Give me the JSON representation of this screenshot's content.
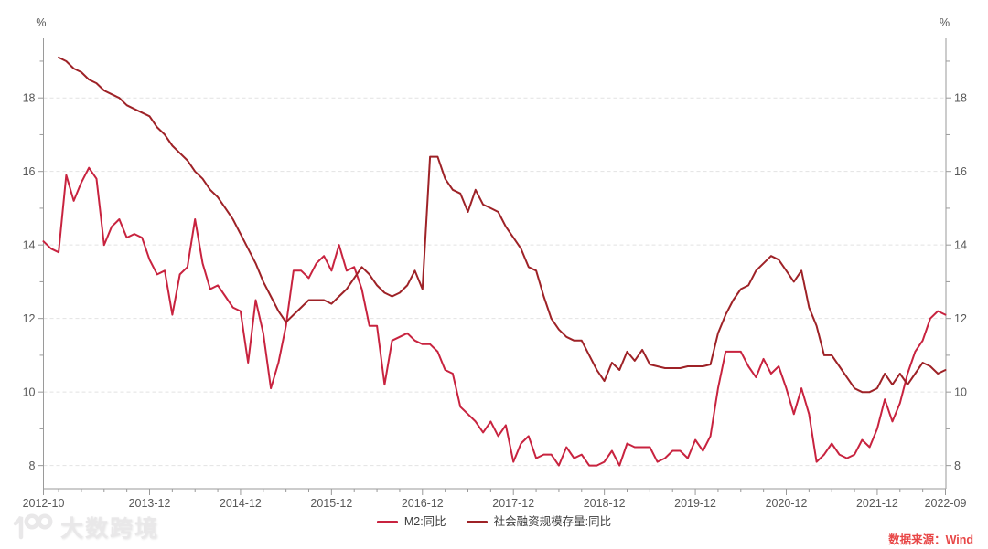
{
  "axes": {
    "unit_left": "%",
    "unit_right": "%"
  },
  "watermark": {
    "text": "大数跨境"
  },
  "legend": {
    "items": [
      {
        "label": "M2:同比",
        "color": "#c8233f"
      },
      {
        "label": "社会融资规模存量:同比",
        "color": "#9e2227"
      }
    ]
  },
  "source": {
    "label": "数据来源：Wind",
    "color": "#e84747"
  },
  "chart_data": {
    "type": "line",
    "title": "",
    "y_unit": "%",
    "ylim": [
      7.37,
      19.62
    ],
    "y_ticks": [
      8,
      10,
      12,
      14,
      16,
      18
    ],
    "y_minor_tick_step": 1,
    "grid": "horizontal-dashed",
    "grid_color": "#e2e2e2",
    "axis_color": "#9a9a9a",
    "tick_label_color": "#595959",
    "legend_position": "bottom-center",
    "x_start": "2012-10",
    "x_end": "2022-09",
    "x_total_months": 119,
    "x_minor_tick_every_months": 3,
    "x_tick_labels": [
      {
        "label": "2012-10",
        "m": 0
      },
      {
        "label": "2013-12",
        "m": 14
      },
      {
        "label": "2014-12",
        "m": 26
      },
      {
        "label": "2015-12",
        "m": 38
      },
      {
        "label": "2016-12",
        "m": 50
      },
      {
        "label": "2017-12",
        "m": 62
      },
      {
        "label": "2018-12",
        "m": 74
      },
      {
        "label": "2019-12",
        "m": 86
      },
      {
        "label": "2020-12",
        "m": 98
      },
      {
        "label": "2021-12",
        "m": 110
      },
      {
        "label": "2022-09",
        "m": 119
      }
    ],
    "series": [
      {
        "name": "M2:同比",
        "color": "#c8233f",
        "start": "2012-10",
        "start_month_offset": 0,
        "values": [
          14.1,
          13.9,
          13.8,
          15.9,
          15.2,
          15.7,
          16.1,
          15.8,
          14.0,
          14.5,
          14.7,
          14.2,
          14.3,
          14.2,
          13.6,
          13.2,
          13.3,
          12.1,
          13.2,
          13.4,
          14.7,
          13.5,
          12.8,
          12.9,
          12.6,
          12.3,
          12.2,
          10.8,
          12.5,
          11.6,
          10.1,
          10.8,
          11.8,
          13.3,
          13.3,
          13.1,
          13.5,
          13.7,
          13.3,
          14.0,
          13.3,
          13.4,
          12.8,
          11.8,
          11.8,
          10.2,
          11.4,
          11.5,
          11.6,
          11.4,
          11.3,
          11.3,
          11.1,
          10.6,
          10.5,
          9.6,
          9.4,
          9.2,
          8.9,
          9.2,
          8.8,
          9.1,
          8.1,
          8.6,
          8.8,
          8.2,
          8.3,
          8.3,
          8.0,
          8.5,
          8.2,
          8.3,
          8.0,
          8.0,
          8.1,
          8.4,
          8.0,
          8.6,
          8.5,
          8.5,
          8.5,
          8.1,
          8.2,
          8.4,
          8.4,
          8.2,
          8.7,
          8.4,
          8.8,
          10.1,
          11.1,
          11.1,
          11.1,
          10.7,
          10.4,
          10.9,
          10.5,
          10.7,
          10.1,
          9.4,
          10.1,
          9.4,
          8.1,
          8.3,
          8.6,
          8.3,
          8.2,
          8.3,
          8.7,
          8.5,
          9.0,
          9.8,
          9.2,
          9.7,
          10.5,
          11.1,
          11.4,
          12.0,
          12.2,
          12.1
        ]
      },
      {
        "name": "社会融资规模存量:同比",
        "color": "#9e2227",
        "start": "2012-12",
        "start_month_offset": 2,
        "values": [
          19.1,
          19.0,
          18.8,
          18.7,
          18.5,
          18.4,
          18.2,
          18.1,
          18.0,
          17.8,
          17.7,
          17.6,
          17.5,
          17.2,
          17.0,
          16.7,
          16.5,
          16.3,
          16.0,
          15.8,
          15.5,
          15.3,
          15.0,
          14.7,
          14.3,
          13.9,
          13.5,
          13.0,
          12.6,
          12.2,
          11.9,
          12.1,
          12.3,
          12.5,
          12.5,
          12.5,
          12.4,
          12.6,
          12.8,
          13.1,
          13.4,
          13.2,
          12.9,
          12.7,
          12.6,
          12.7,
          12.9,
          13.3,
          12.8,
          16.4,
          16.4,
          15.8,
          15.5,
          15.4,
          14.9,
          15.5,
          15.1,
          15.0,
          14.9,
          14.5,
          14.2,
          13.9,
          13.4,
          13.3,
          12.6,
          12.0,
          11.7,
          11.5,
          11.4,
          11.4,
          11.0,
          10.6,
          10.3,
          10.8,
          10.6,
          11.1,
          10.85,
          11.15,
          10.75,
          10.7,
          10.65,
          10.65,
          10.65,
          10.7,
          10.7,
          10.7,
          10.75,
          11.6,
          12.1,
          12.5,
          12.8,
          12.9,
          13.3,
          13.5,
          13.7,
          13.6,
          13.3,
          13.0,
          13.3,
          12.3,
          11.8,
          11.0,
          11.0,
          10.7,
          10.4,
          10.1,
          10.0,
          10.0,
          10.1,
          10.5,
          10.2,
          10.5,
          10.2,
          10.5,
          10.8,
          10.7,
          10.5,
          10.6
        ]
      }
    ]
  }
}
